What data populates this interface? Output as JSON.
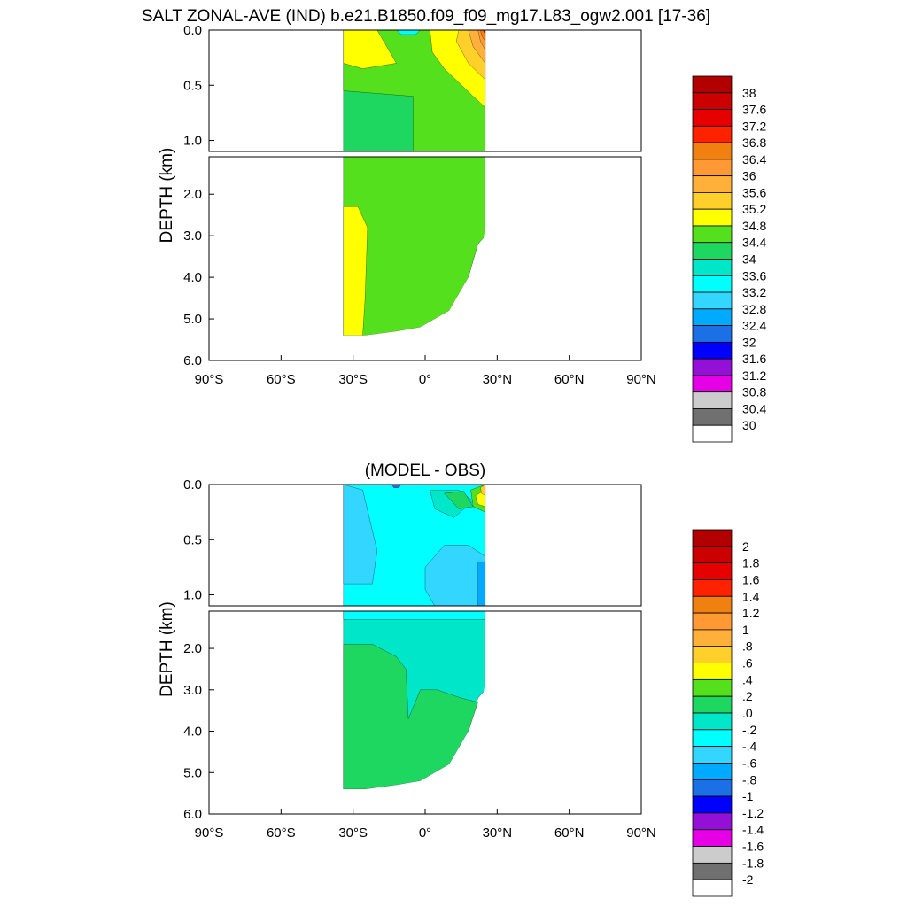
{
  "title": "SALT ZONAL-AVE (IND) b.e21.B1850.f09_f09_mg17.L83_ogw2.001 [17-36]",
  "chart_data": [
    {
      "type": "heatmap",
      "title": "",
      "xlabel": "",
      "ylabel": "DEPTH (km)",
      "x_ticks": [
        "90°S",
        "60°S",
        "30°S",
        "0°",
        "30°N",
        "60°N",
        "90°N"
      ],
      "xlim": [
        -90,
        90
      ],
      "upper_panel": {
        "ylim": [
          0.0,
          1.1
        ],
        "y_ticks": [
          "0.0",
          "0.5",
          "1.0"
        ]
      },
      "lower_panel": {
        "ylim": [
          1.1,
          6.0
        ],
        "y_ticks": [
          "2.0",
          "3.0",
          "4.0",
          "5.0",
          "6.0"
        ]
      },
      "colorbar": {
        "labels": [
          "38",
          "37.6",
          "37.2",
          "36.8",
          "36.4",
          "36",
          "35.6",
          "35.2",
          "34.8",
          "34.4",
          "34",
          "33.6",
          "33.2",
          "32.8",
          "32.4",
          "32",
          "31.6",
          "31.2",
          "30.8",
          "30.4",
          "30"
        ],
        "colors": [
          "#b20000",
          "#cc0000",
          "#e60000",
          "#ff2200",
          "#f08010",
          "#ff9933",
          "#ffb03b",
          "#ffd02a",
          "#ffff00",
          "#55e01e",
          "#1ed760",
          "#00e6c8",
          "#00ffff",
          "#33d6ff",
          "#00aaff",
          "#1c70e6",
          "#0000ff",
          "#9510d6",
          "#e600e6",
          "#cccccc",
          "#707070",
          "#ffffff"
        ]
      },
      "regions_upper": [
        {
          "color_index": 10,
          "points": [
            [
              -34,
              0.0
            ],
            [
              25,
              0.0
            ],
            [
              25,
              1.1
            ],
            [
              -34,
              1.1
            ]
          ]
        },
        {
          "color_index": 9,
          "points": [
            [
              -34,
              0.0
            ],
            [
              25,
              0.0
            ],
            [
              25,
              1.1
            ],
            [
              -5,
              1.1
            ],
            [
              -5,
              0.6
            ],
            [
              -34,
              0.55
            ]
          ]
        },
        {
          "color_index": 8,
          "points": [
            [
              -34,
              0.0
            ],
            [
              -20,
              0.0
            ],
            [
              -12,
              0.3
            ],
            [
              -26,
              0.35
            ],
            [
              -34,
              0.3
            ]
          ]
        },
        {
          "color_index": 8,
          "points": [
            [
              2,
              0.0
            ],
            [
              25,
              0.0
            ],
            [
              25,
              0.7
            ],
            [
              20,
              0.6
            ],
            [
              8,
              0.35
            ],
            [
              3,
              0.2
            ]
          ]
        },
        {
          "color_index": 7,
          "points": [
            [
              14,
              0.0
            ],
            [
              25,
              0.0
            ],
            [
              25,
              0.45
            ],
            [
              18,
              0.3
            ],
            [
              13,
              0.1
            ]
          ]
        },
        {
          "color_index": 6,
          "points": [
            [
              18,
              0.0
            ],
            [
              25,
              0.0
            ],
            [
              25,
              0.3
            ],
            [
              20,
              0.15
            ]
          ]
        },
        {
          "color_index": 5,
          "points": [
            [
              22,
              0.0
            ],
            [
              25,
              0.0
            ],
            [
              25,
              0.18
            ],
            [
              23,
              0.1
            ]
          ]
        },
        {
          "color_index": 4,
          "points": [
            [
              23,
              0.0
            ],
            [
              25,
              0.0
            ],
            [
              25,
              0.1
            ],
            [
              23.5,
              0.05
            ]
          ]
        },
        {
          "color_index": 2,
          "points": [
            [
              24.2,
              0.0
            ],
            [
              25,
              0.0
            ],
            [
              25,
              0.03
            ],
            [
              24.5,
              0.02
            ]
          ]
        },
        {
          "color_index": 12,
          "points": [
            [
              -12,
              0.0
            ],
            [
              -2,
              0.0
            ],
            [
              -4,
              0.04
            ],
            [
              -10,
              0.04
            ]
          ]
        }
      ],
      "regions_lower": [
        {
          "color_index": 9,
          "points": [
            [
              -34,
              1.1
            ],
            [
              25,
              1.1
            ],
            [
              25,
              3.0
            ],
            [
              22,
              3.2
            ],
            [
              18,
              4.0
            ],
            [
              10,
              4.8
            ],
            [
              -2,
              5.2
            ],
            [
              -12,
              5.3
            ],
            [
              -25,
              5.4
            ],
            [
              -34,
              5.4
            ]
          ]
        },
        {
          "color_index": 8,
          "points": [
            [
              -34,
              2.3
            ],
            [
              -28,
              2.3
            ],
            [
              -24,
              2.8
            ],
            [
              -25,
              4.5
            ],
            [
              -26,
              5.4
            ],
            [
              -34,
              5.4
            ]
          ]
        }
      ],
      "seafloor_lower": [
        [
          25,
          1.1
        ],
        [
          25,
          2.8
        ],
        [
          24,
          3.2
        ],
        [
          18,
          4.0
        ],
        [
          10,
          4.8
        ],
        [
          -2,
          5.2
        ],
        [
          -12,
          5.3
        ],
        [
          -25,
          5.4
        ],
        [
          -34,
          5.4
        ]
      ]
    },
    {
      "type": "heatmap",
      "title": "(MODEL - OBS)",
      "xlabel": "",
      "ylabel": "DEPTH (km)",
      "x_ticks": [
        "90°S",
        "60°S",
        "30°S",
        "0°",
        "30°N",
        "60°N",
        "90°N"
      ],
      "xlim": [
        -90,
        90
      ],
      "upper_panel": {
        "ylim": [
          0.0,
          1.1
        ],
        "y_ticks": [
          "0.0",
          "0.5",
          "1.0"
        ]
      },
      "lower_panel": {
        "ylim": [
          1.1,
          6.0
        ],
        "y_ticks": [
          "2.0",
          "3.0",
          "4.0",
          "5.0",
          "6.0"
        ]
      },
      "colorbar": {
        "labels": [
          "2",
          "1.8",
          "1.6",
          "1.4",
          "1.2",
          "1",
          ".8",
          ".6",
          ".4",
          ".2",
          ".0",
          "-.2",
          "-.4",
          "-.6",
          "-.8",
          "-1",
          "-1.2",
          "-1.4",
          "-1.6",
          "-1.8",
          "-2"
        ],
        "colors": [
          "#b20000",
          "#cc0000",
          "#e60000",
          "#ff2200",
          "#f08010",
          "#ff9933",
          "#ffb03b",
          "#ffd02a",
          "#ffff00",
          "#55e01e",
          "#1ed760",
          "#00e6c8",
          "#00ffff",
          "#33d6ff",
          "#00aaff",
          "#1c70e6",
          "#0000ff",
          "#9510d6",
          "#e600e6",
          "#cccccc",
          "#707070",
          "#ffffff"
        ]
      },
      "regions_upper": [
        {
          "color_index": 12,
          "points": [
            [
              -34,
              0.0
            ],
            [
              25,
              0.0
            ],
            [
              25,
              1.1
            ],
            [
              -34,
              1.1
            ]
          ]
        },
        {
          "color_index": 13,
          "points": [
            [
              -34,
              0.0
            ],
            [
              -26,
              0.05
            ],
            [
              -20,
              0.6
            ],
            [
              -22,
              0.9
            ],
            [
              -34,
              0.9
            ]
          ]
        },
        {
          "color_index": 13,
          "points": [
            [
              0,
              0.75
            ],
            [
              8,
              0.55
            ],
            [
              18,
              0.55
            ],
            [
              25,
              0.65
            ],
            [
              25,
              1.1
            ],
            [
              4,
              1.1
            ],
            [
              0,
              0.95
            ]
          ]
        },
        {
          "color_index": 14,
          "points": [
            [
              22,
              0.7
            ],
            [
              25,
              0.7
            ],
            [
              25,
              1.1
            ],
            [
              22,
              1.1
            ]
          ]
        },
        {
          "color_index": 11,
          "points": [
            [
              2,
              0.05
            ],
            [
              14,
              0.05
            ],
            [
              20,
              0.15
            ],
            [
              12,
              0.3
            ],
            [
              4,
              0.22
            ]
          ]
        },
        {
          "color_index": 10,
          "points": [
            [
              8,
              0.08
            ],
            [
              16,
              0.06
            ],
            [
              20,
              0.2
            ],
            [
              14,
              0.22
            ]
          ]
        },
        {
          "color_index": 9,
          "points": [
            [
              19,
              0.05
            ],
            [
              25,
              0.0
            ],
            [
              25,
              0.25
            ],
            [
              20,
              0.2
            ]
          ]
        },
        {
          "color_index": 8,
          "points": [
            [
              21,
              0.1
            ],
            [
              25,
              0.05
            ],
            [
              25,
              0.2
            ],
            [
              22,
              0.18
            ]
          ]
        },
        {
          "color_index": 7,
          "points": [
            [
              23,
              0.03
            ],
            [
              25,
              0.0
            ],
            [
              25,
              0.1
            ],
            [
              23.5,
              0.08
            ]
          ]
        },
        {
          "color_index": 15,
          "points": [
            [
              -14,
              0.0
            ],
            [
              -10,
              0.0
            ],
            [
              -11,
              0.03
            ],
            [
              -13,
              0.03
            ]
          ]
        }
      ],
      "regions_lower": [
        {
          "color_index": 11,
          "points": [
            [
              -34,
              1.1
            ],
            [
              25,
              1.1
            ],
            [
              25,
              3.0
            ],
            [
              22,
              3.2
            ],
            [
              18,
              4.0
            ],
            [
              10,
              4.8
            ],
            [
              -2,
              5.2
            ],
            [
              -12,
              5.3
            ],
            [
              -25,
              5.4
            ],
            [
              -34,
              5.4
            ]
          ]
        },
        {
          "color_index": 10,
          "points": [
            [
              -34,
              1.9
            ],
            [
              -22,
              1.9
            ],
            [
              -12,
              2.2
            ],
            [
              -8,
              2.5
            ],
            [
              -7,
              3.7
            ],
            [
              -2,
              3.0
            ],
            [
              5,
              3.0
            ],
            [
              15,
              3.2
            ],
            [
              22,
              3.3
            ],
            [
              18,
              4.0
            ],
            [
              10,
              4.8
            ],
            [
              -2,
              5.2
            ],
            [
              -12,
              5.3
            ],
            [
              -25,
              5.4
            ],
            [
              -34,
              5.4
            ]
          ]
        },
        {
          "color_index": 12,
          "points": [
            [
              -34,
              1.1
            ],
            [
              25,
              1.1
            ],
            [
              25,
              1.3
            ],
            [
              -34,
              1.3
            ]
          ]
        }
      ],
      "seafloor_lower": [
        [
          25,
          1.1
        ],
        [
          25,
          2.8
        ],
        [
          24,
          3.2
        ],
        [
          18,
          4.0
        ],
        [
          10,
          4.8
        ],
        [
          -2,
          5.2
        ],
        [
          -12,
          5.3
        ],
        [
          -25,
          5.4
        ],
        [
          -34,
          5.4
        ]
      ]
    }
  ]
}
